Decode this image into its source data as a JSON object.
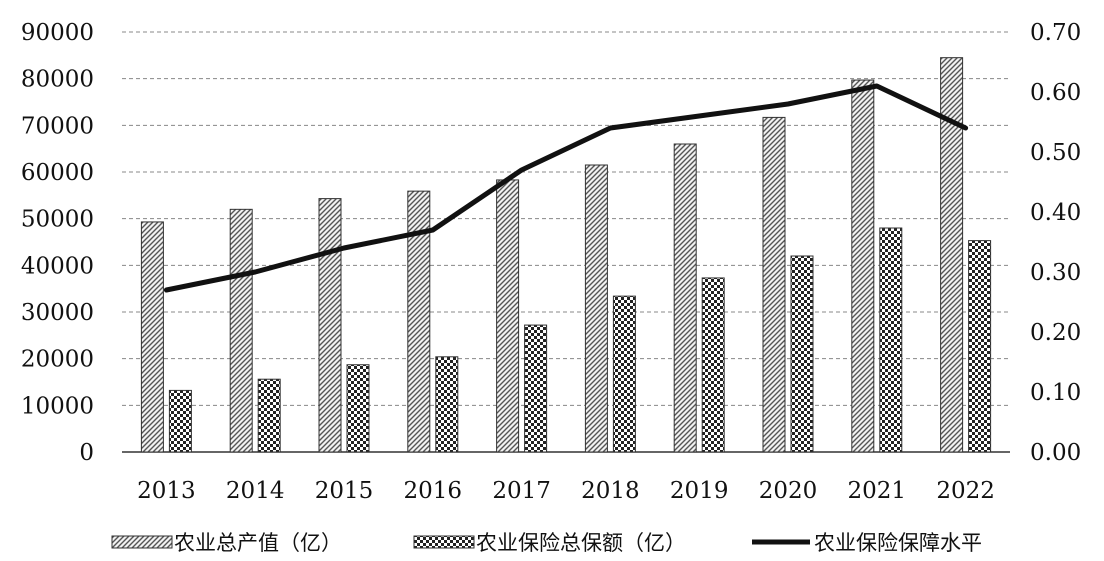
{
  "chart_data": {
    "type": "bar",
    "categories": [
      "2013",
      "2014",
      "2015",
      "2016",
      "2017",
      "2018",
      "2019",
      "2020",
      "2021",
      "2022"
    ],
    "series": [
      {
        "name": "农业总产值（亿）",
        "kind": "bar",
        "axis": "left",
        "pattern": "diagonal-hatch",
        "values": [
          49300,
          52000,
          54300,
          55900,
          58300,
          61500,
          66000,
          71700,
          79700,
          84500
        ]
      },
      {
        "name": "农业保险总保额（亿）",
        "kind": "bar",
        "axis": "left",
        "pattern": "checker",
        "values": [
          13200,
          15600,
          18700,
          20400,
          27200,
          33400,
          37300,
          42000,
          48000,
          45300
        ]
      },
      {
        "name": "农业保险保障水平",
        "kind": "line",
        "axis": "right",
        "color": "#111111",
        "values": [
          0.27,
          0.3,
          0.34,
          0.37,
          0.47,
          0.54,
          0.56,
          0.58,
          0.61,
          0.54
        ]
      }
    ],
    "y_left": {
      "ylim": [
        0,
        90000
      ],
      "ticks": [
        "0",
        "10000",
        "20000",
        "30000",
        "40000",
        "50000",
        "60000",
        "70000",
        "80000",
        "90000"
      ]
    },
    "y_right": {
      "ylim": [
        0,
        0.7
      ],
      "ticks": [
        "0.00",
        "0.10",
        "0.20",
        "0.30",
        "0.40",
        "0.50",
        "0.60",
        "0.70"
      ]
    },
    "grid": "horizontal-dashed",
    "legend_position": "bottom"
  }
}
